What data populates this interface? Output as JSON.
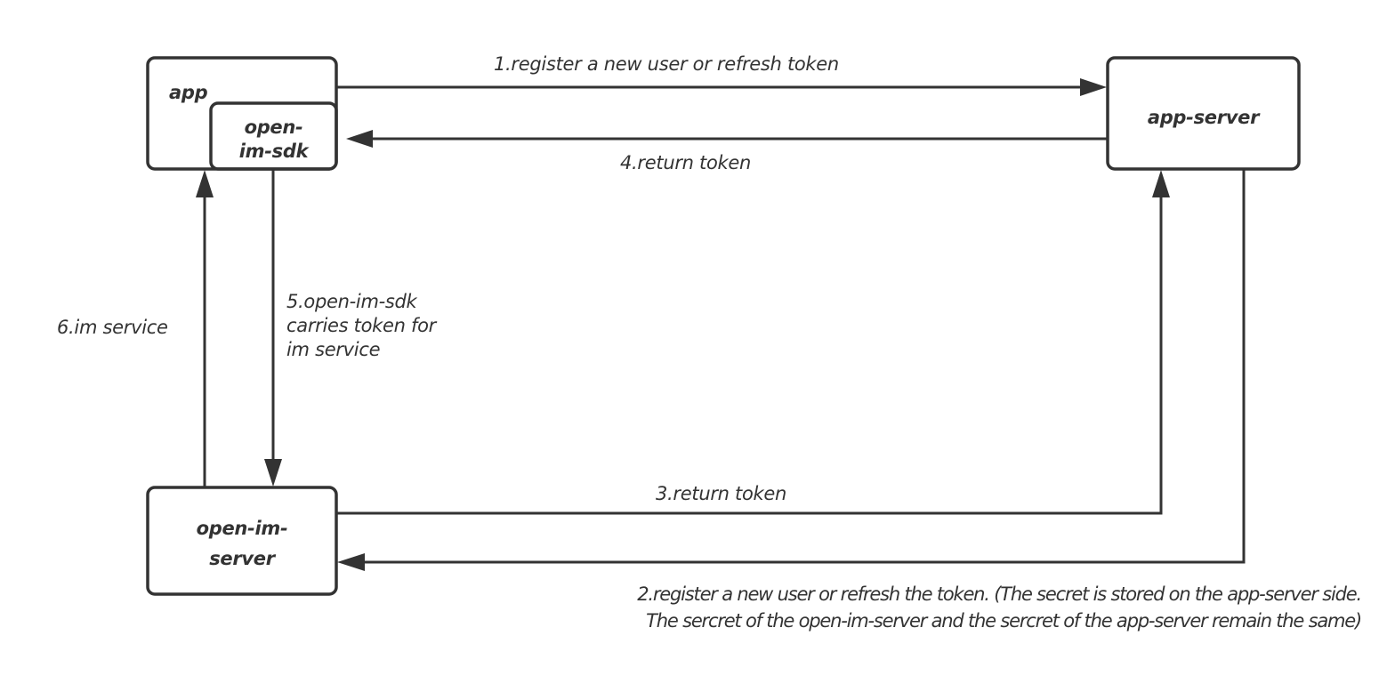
{
  "nodes": {
    "app": "app",
    "sdk": "open-im-sdk",
    "sdk_line1": "open-",
    "sdk_line2": "im-sdk",
    "app_server": "app-server",
    "im_server_line1": "open-im-",
    "im_server_line2": "server"
  },
  "edges": {
    "e1": "1.register a new user or refresh token",
    "e2_line1": "2.register a new user or refresh the token. (The secret is stored on the app-server side.",
    "e2_line2": "The sercret of the open-im-server and the sercret of the app-server remain the same)",
    "e3": "3.return token",
    "e4": "4.return token",
    "e5_line1": "5.open-im-sdk",
    "e5_line2": "carries token for",
    "e5_line3": "im service",
    "e6": "6.im service"
  },
  "colors": {
    "stroke": "#333333",
    "background": "#ffffff"
  }
}
